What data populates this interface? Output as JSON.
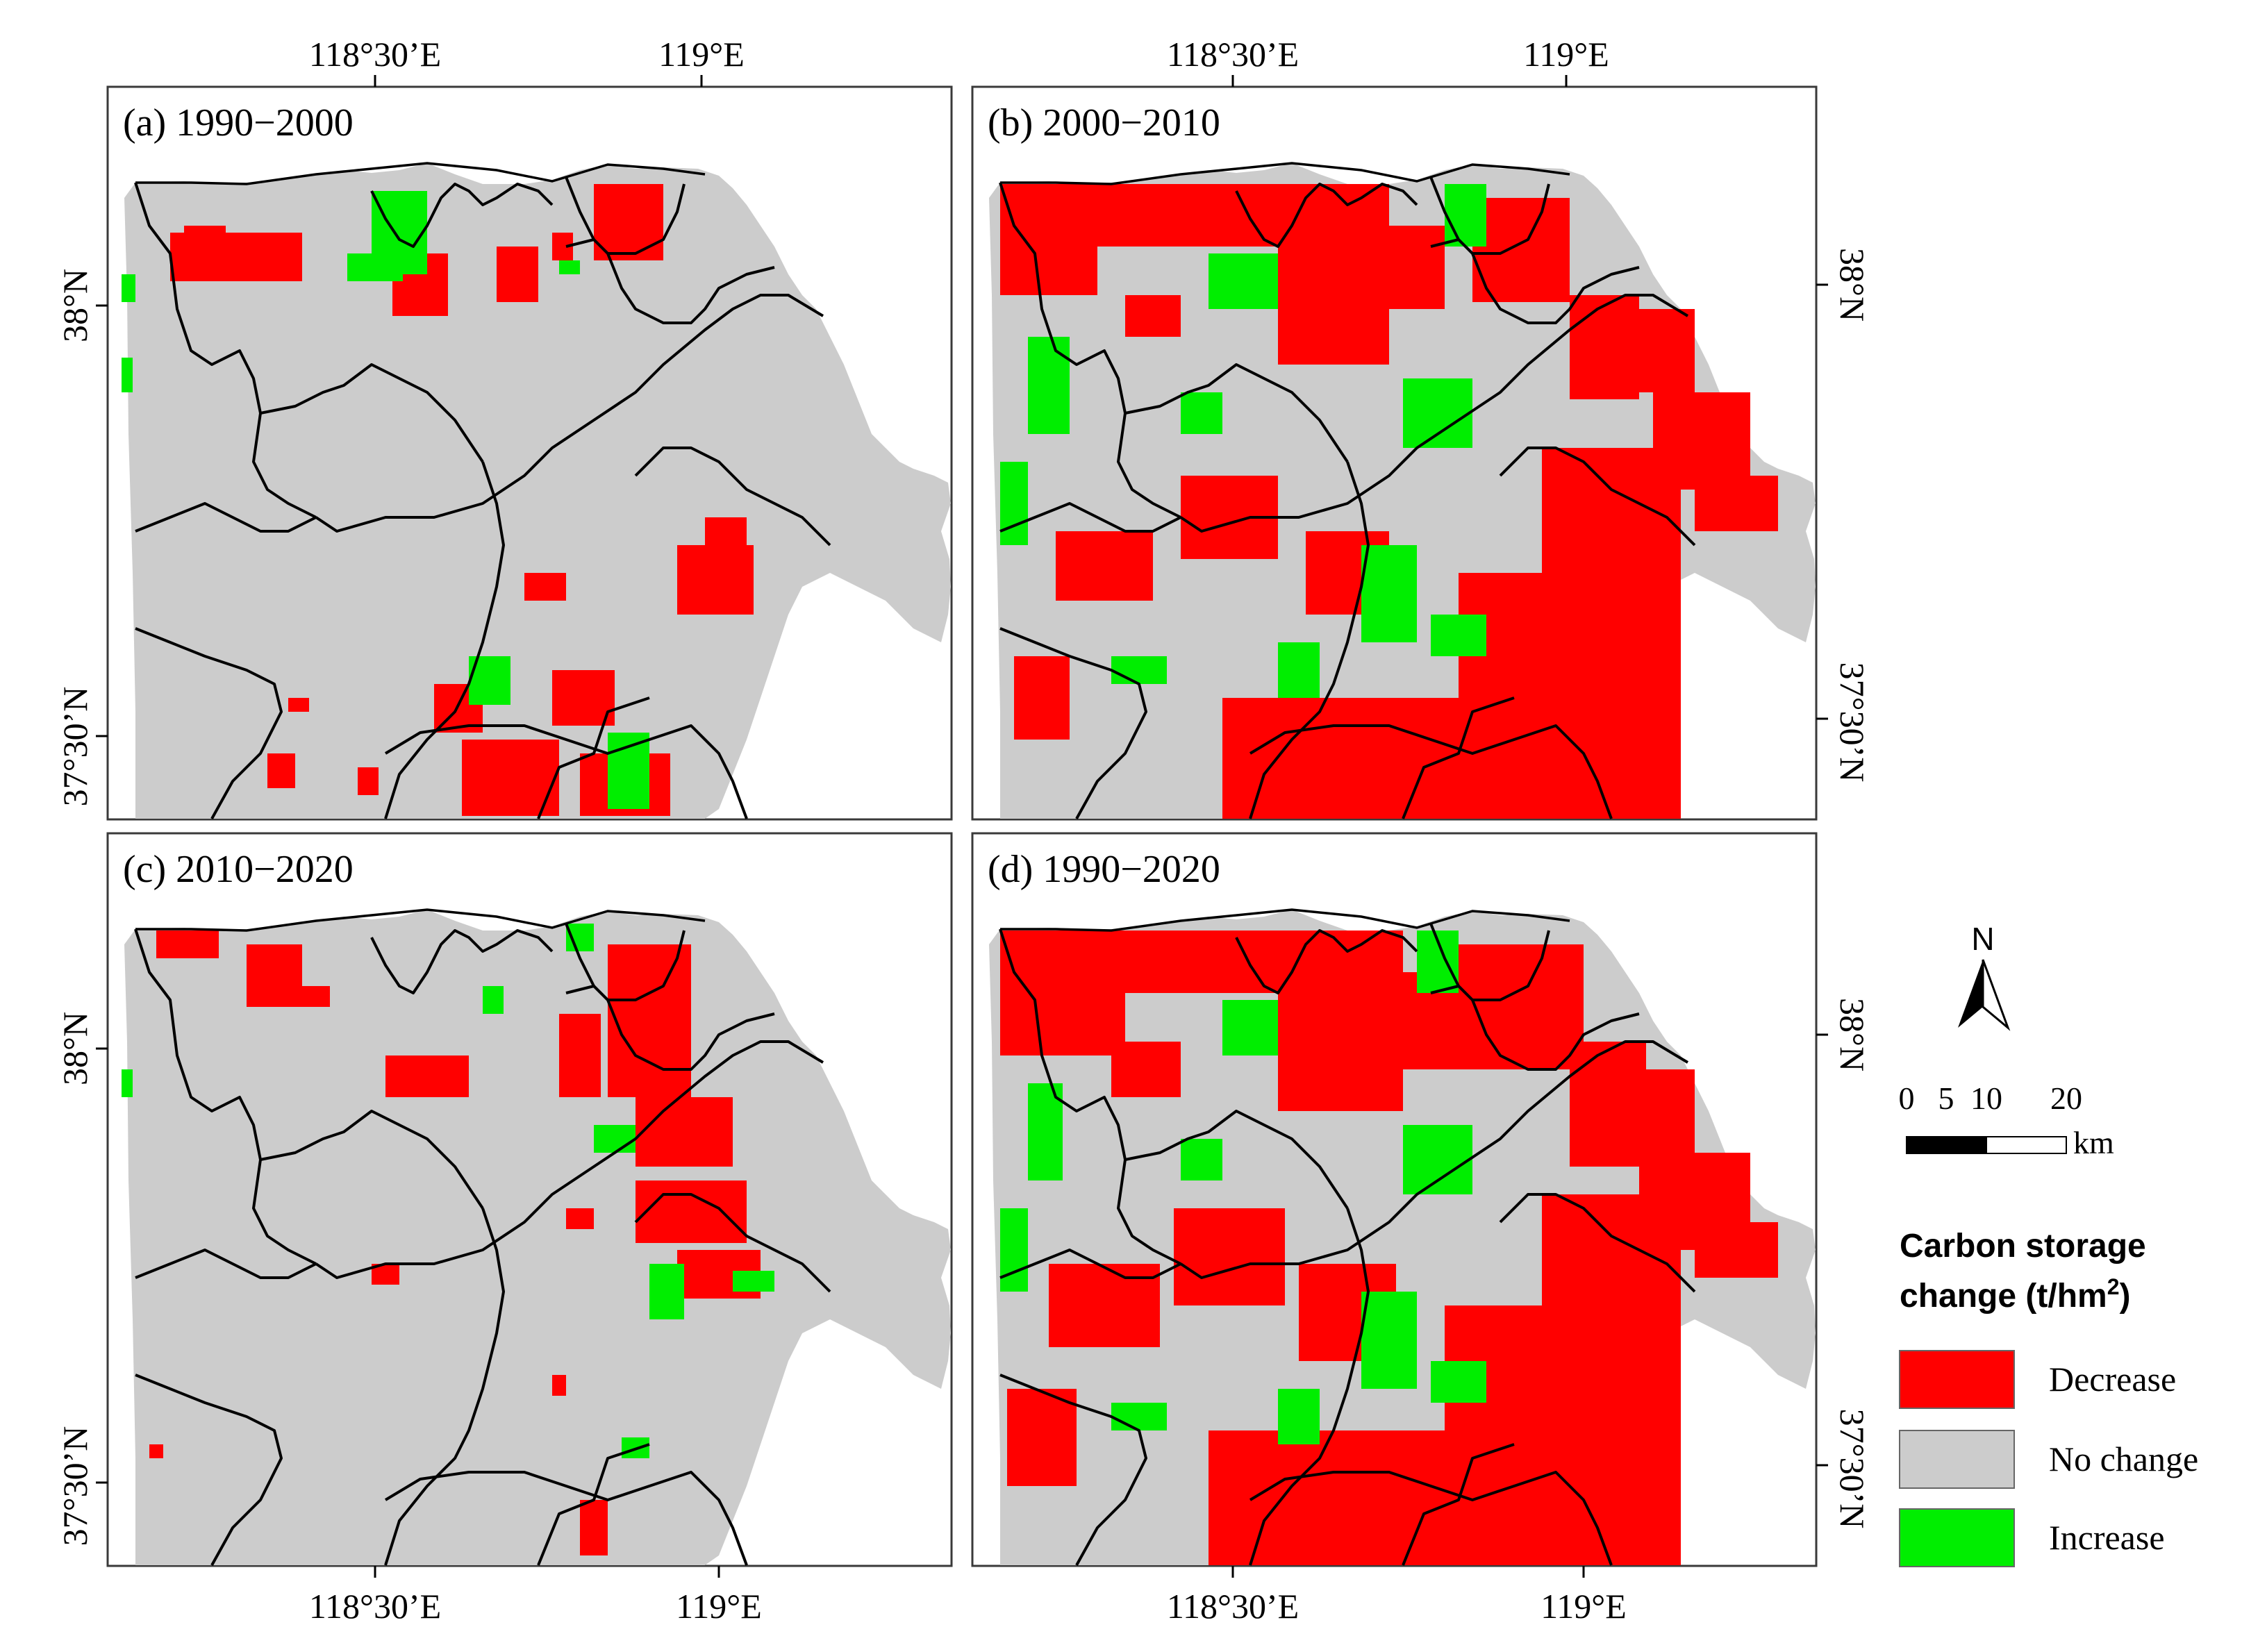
{
  "panels": [
    {
      "label": "(a) 1990−2000"
    },
    {
      "label": "(b) 2000−2010"
    },
    {
      "label": "(c) 2010−2020"
    },
    {
      "label": "(d) 1990−2020"
    }
  ],
  "axes": {
    "lon_ticks": [
      "118°30’E",
      "119°E"
    ],
    "lat_ticks": [
      "38°N",
      "37°30’N"
    ]
  },
  "north_arrow": {
    "label": "N"
  },
  "scale_bar": {
    "ticks": [
      "0",
      "5",
      "10",
      "20"
    ],
    "unit": "km"
  },
  "legend": {
    "title_line1": "Carbon storage",
    "title_line2": "change (t/hm",
    "title_sup": "2",
    "title_close": ")",
    "items": [
      {
        "label": "Decrease",
        "color": "#ff0000"
      },
      {
        "label": "No change",
        "color": "#cccccc"
      },
      {
        "label": "Increase",
        "color": "#00ee00"
      }
    ]
  }
}
